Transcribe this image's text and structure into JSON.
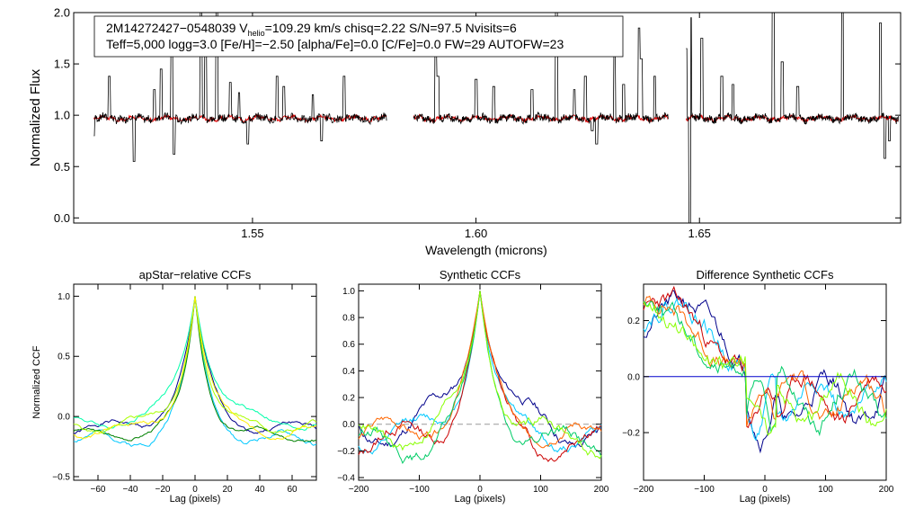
{
  "colors": {
    "axis": "#000000",
    "spectrum": "#000000",
    "model": "#e00000",
    "zero_line": "#999999",
    "blue_line": "#0000cc"
  },
  "chart_data": [
    {
      "id": "spectrum",
      "type": "line",
      "xlabel": "Wavelength (microns)",
      "ylabel": "Normalized Flux",
      "xlim": [
        1.51,
        1.695
      ],
      "ylim": [
        -0.05,
        2.0
      ],
      "xticks": [
        "1.55",
        "1.60",
        "1.65"
      ],
      "xtick_values": [
        1.55,
        1.6,
        1.65
      ],
      "yticks": [
        "0.0",
        "0.5",
        "1.0",
        "1.5",
        "2.0"
      ],
      "ytick_values": [
        0.0,
        0.5,
        1.0,
        1.5,
        2.0
      ],
      "segments": [
        [
          1.5145,
          1.58
        ],
        [
          1.586,
          1.643
        ],
        [
          1.647,
          1.6945
        ]
      ],
      "baseline": 0.97,
      "spikes": [
        [
          1.518,
          1.38
        ],
        [
          1.528,
          1.25
        ],
        [
          1.5295,
          1.45
        ],
        [
          1.532,
          1.7
        ],
        [
          1.5325,
          0.62
        ],
        [
          1.5385,
          2.0
        ],
        [
          1.5395,
          1.65
        ],
        [
          1.542,
          2.0
        ],
        [
          1.545,
          1.32
        ],
        [
          1.547,
          1.22
        ],
        [
          1.549,
          0.72
        ],
        [
          1.5555,
          1.38
        ],
        [
          1.557,
          1.28
        ],
        [
          1.5635,
          1.2
        ],
        [
          1.5655,
          0.75
        ],
        [
          1.5705,
          1.38
        ],
        [
          1.5235,
          0.55
        ],
        [
          1.5145,
          0.8
        ],
        [
          1.591,
          1.65
        ],
        [
          1.5915,
          1.38
        ],
        [
          1.6,
          1.35
        ],
        [
          1.604,
          1.28
        ],
        [
          1.6125,
          1.25
        ],
        [
          1.618,
          2.0
        ],
        [
          1.622,
          1.25
        ],
        [
          1.6245,
          1.38
        ],
        [
          1.626,
          0.85
        ],
        [
          1.631,
          1.6
        ],
        [
          1.633,
          1.3
        ],
        [
          1.6365,
          1.85
        ],
        [
          1.637,
          1.55
        ],
        [
          1.64,
          1.38
        ],
        [
          1.627,
          0.72
        ],
        [
          1.647,
          1.65
        ],
        [
          1.648,
          1.95
        ],
        [
          1.6478,
          -0.05
        ],
        [
          1.6505,
          1.75
        ],
        [
          1.655,
          1.38
        ],
        [
          1.6575,
          1.3
        ],
        [
          1.6665,
          2.0
        ],
        [
          1.6685,
          1.52
        ],
        [
          1.672,
          1.28
        ],
        [
          1.682,
          2.0
        ],
        [
          1.6905,
          1.9
        ],
        [
          1.6915,
          0.58
        ],
        [
          1.6925,
          0.75
        ]
      ],
      "annotation": {
        "line1_pre": "2M14272427−0548039  V",
        "line1_sub": "helio",
        "line1_post": "=109.29 km/s  chisq=2.22  S/N=97.5  Nvisits=6",
        "line2": "Teff=5,000 logg=3.0 [Fe/H]=−2.50 [alpha/Fe]=0.0 [C/Fe]=0.0 FW=29 AUTOFW=23"
      }
    },
    {
      "id": "ccf1",
      "type": "line",
      "title": "apStar−relative CCFs",
      "xlabel": "Lag (pixels)",
      "ylabel": "Normalized CCF",
      "xlim": [
        -75,
        75
      ],
      "ylim": [
        -0.53,
        1.1
      ],
      "xticks": [
        "−60",
        "−40",
        "−20",
        "0",
        "20",
        "40",
        "60"
      ],
      "xtick_values": [
        -60,
        -40,
        -20,
        0,
        20,
        40,
        60
      ],
      "yticks": [
        "−0.5",
        "0.0",
        "0.5",
        "1.0"
      ],
      "ytick_values": [
        -0.5,
        0.0,
        0.5,
        1.0
      ],
      "series": [
        {
          "name": "visit1",
          "color": "#00008b",
          "base": -0.1,
          "width": 10,
          "amp": 0.05,
          "seed": 1
        },
        {
          "name": "visit2",
          "color": "#00c8ff",
          "base": -0.2,
          "width": 9,
          "amp": 0.06,
          "seed": 2
        },
        {
          "name": "visit3",
          "color": "#008000",
          "base": -0.15,
          "width": 8,
          "amp": 0.04,
          "seed": 3
        },
        {
          "name": "visit4",
          "color": "#00ffaa",
          "base": -0.05,
          "width": 12,
          "amp": 0.05,
          "seed": 4
        },
        {
          "name": "visit5",
          "color": "#aaff00",
          "base": -0.08,
          "width": 9,
          "amp": 0.05,
          "seed": 5
        },
        {
          "name": "visit6",
          "color": "#ffee00",
          "base": -0.12,
          "width": 10,
          "amp": 0.05,
          "seed": 6
        }
      ]
    },
    {
      "id": "ccf2",
      "type": "line",
      "title": "Synthetic CCFs",
      "xlabel": "Lag (pixels)",
      "xlim": [
        -200,
        200
      ],
      "ylim": [
        -0.42,
        1.05
      ],
      "xticks": [
        "−200",
        "−100",
        "0",
        "100",
        "200"
      ],
      "xtick_values": [
        -200,
        -100,
        0,
        100,
        200
      ],
      "yticks": [
        "−0.4",
        "−0.2",
        "0.0",
        "0.2",
        "0.4",
        "0.6",
        "0.8",
        "1.0"
      ],
      "ytick_values": [
        -0.4,
        -0.2,
        0.0,
        0.2,
        0.4,
        0.6,
        0.8,
        1.0
      ],
      "zero_line": true,
      "series": [
        {
          "name": "visit1",
          "color": "#00008b",
          "base": -0.05,
          "width": 35,
          "amp": 0.12,
          "seed": 11
        },
        {
          "name": "visit2",
          "color": "#00c8ff",
          "base": -0.1,
          "width": 30,
          "amp": 0.1,
          "seed": 12
        },
        {
          "name": "visit3",
          "color": "#cc0000",
          "base": -0.12,
          "width": 28,
          "amp": 0.12,
          "seed": 13
        },
        {
          "name": "visit4",
          "color": "#ff6600",
          "base": -0.08,
          "width": 30,
          "amp": 0.1,
          "seed": 14
        },
        {
          "name": "visit5",
          "color": "#00cc66",
          "base": -0.15,
          "width": 26,
          "amp": 0.12,
          "seed": 15
        },
        {
          "name": "visit6",
          "color": "#88ff00",
          "base": -0.1,
          "width": 30,
          "amp": 0.12,
          "seed": 16
        }
      ]
    },
    {
      "id": "ccf3",
      "type": "line",
      "title": "Difference Synthetic CCFs",
      "xlabel": "Lag (pixels)",
      "xlim": [
        -200,
        200
      ],
      "ylim": [
        -0.37,
        0.33
      ],
      "xticks": [
        "−200",
        "−100",
        "0",
        "100",
        "200"
      ],
      "xtick_values": [
        -200,
        -100,
        0,
        100,
        200
      ],
      "yticks": [
        "−0.2",
        "0.0",
        "0.2"
      ],
      "ytick_values": [
        -0.2,
        0.0,
        0.2
      ],
      "flat_line": {
        "color": "#0000cc",
        "y": 0.0,
        "xmax": 200
      },
      "series": [
        {
          "name": "visit1",
          "color": "#00008b",
          "seed": 21
        },
        {
          "name": "visit2",
          "color": "#00c8ff",
          "seed": 22
        },
        {
          "name": "visit3",
          "color": "#cc0000",
          "seed": 23
        },
        {
          "name": "visit4",
          "color": "#ff6600",
          "seed": 24
        },
        {
          "name": "visit5",
          "color": "#00cc66",
          "seed": 25
        },
        {
          "name": "visit6",
          "color": "#88ff00",
          "seed": 26
        }
      ]
    }
  ]
}
